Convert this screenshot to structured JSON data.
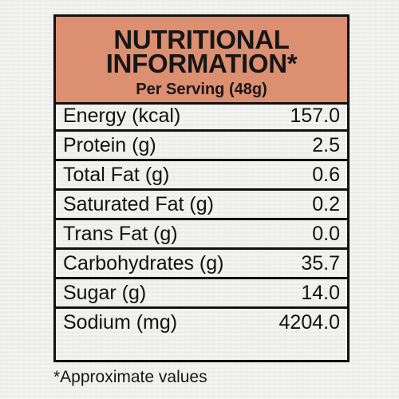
{
  "header": {
    "title_line1": "NUTRITIONAL",
    "title_line2": "INFORMATION*",
    "subtitle": "Per Serving (48g)",
    "background_color": "#dd8f72"
  },
  "nutrients": [
    {
      "name": "Energy (kcal)",
      "value": "157.0"
    },
    {
      "name": "Protein (g)",
      "value": "2.5"
    },
    {
      "name": "Total Fat (g)",
      "value": "0.6"
    },
    {
      "name": "Saturated Fat (g)",
      "value": "0.2"
    },
    {
      "name": "Trans Fat (g)",
      "value": "0.0"
    },
    {
      "name": "Carbohydrates (g)",
      "value": "35.7"
    },
    {
      "name": "Sugar (g)",
      "value": "14.0"
    },
    {
      "name": "Sodium (mg)",
      "value": "4204.0"
    }
  ],
  "footnote": "*Approximate values"
}
